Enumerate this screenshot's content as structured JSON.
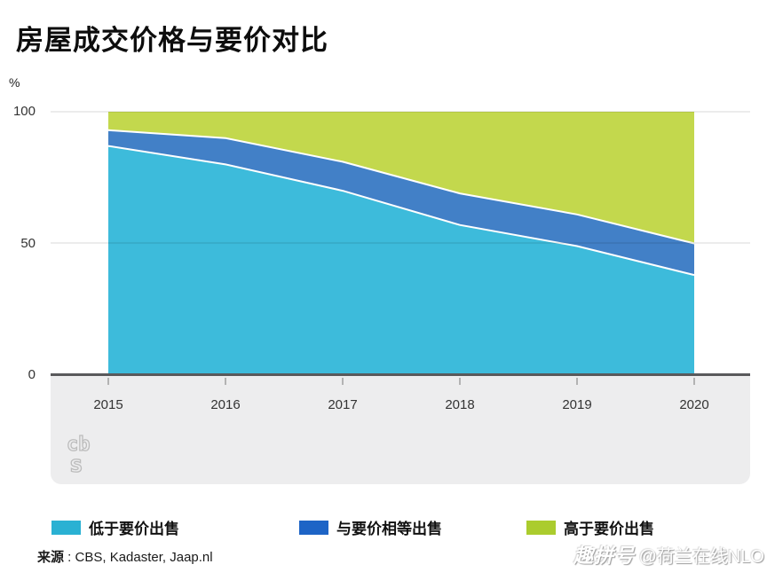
{
  "title": "房屋成交价格与要价对比",
  "unit_label": "%",
  "source": {
    "label": "来源",
    "text": " : CBS, Kadaster, Jaap.nl"
  },
  "watermark": {
    "brand": "趣拼号",
    "handle": "@荷兰在线NLO"
  },
  "cbs_logo_text": {
    "line1": "cb",
    "line2": "s"
  },
  "legend": {
    "items": [
      {
        "label": "低于要价出售",
        "color": "#2ab1d3"
      },
      {
        "label": "与要价相等出售",
        "color": "#1d64c6"
      },
      {
        "label": "高于要价出售",
        "color": "#abcc2e"
      }
    ]
  },
  "chart_data": {
    "type": "area",
    "stacked": true,
    "title": "房屋成交价格与要价对比",
    "xlabel": "",
    "ylabel": "%",
    "x": [
      2015,
      2016,
      2017,
      2018,
      2019,
      2020
    ],
    "series": [
      {
        "name": "低于要价出售",
        "color": "#3dbbdb",
        "values": [
          87,
          80,
          70,
          57,
          49,
          38
        ]
      },
      {
        "name": "与要价相等出售",
        "color": "#4280c7",
        "values": [
          6,
          10,
          11,
          12,
          12,
          12
        ]
      },
      {
        "name": "高于要价出售",
        "color": "#c3d84d",
        "values": [
          7,
          10,
          19,
          31,
          39,
          50
        ]
      }
    ],
    "cumulative_tops": {
      "below_asking": [
        87,
        80,
        70,
        57,
        49,
        38
      ],
      "below_plus_equal": [
        93,
        90,
        81,
        69,
        61,
        50
      ],
      "total": [
        100,
        100,
        100,
        100,
        100,
        100
      ]
    },
    "ylim": [
      0,
      100
    ],
    "yticks": [
      0,
      50,
      100
    ],
    "grid": "horizontal",
    "legend_position": "bottom",
    "separator_color": "#ffffff"
  }
}
